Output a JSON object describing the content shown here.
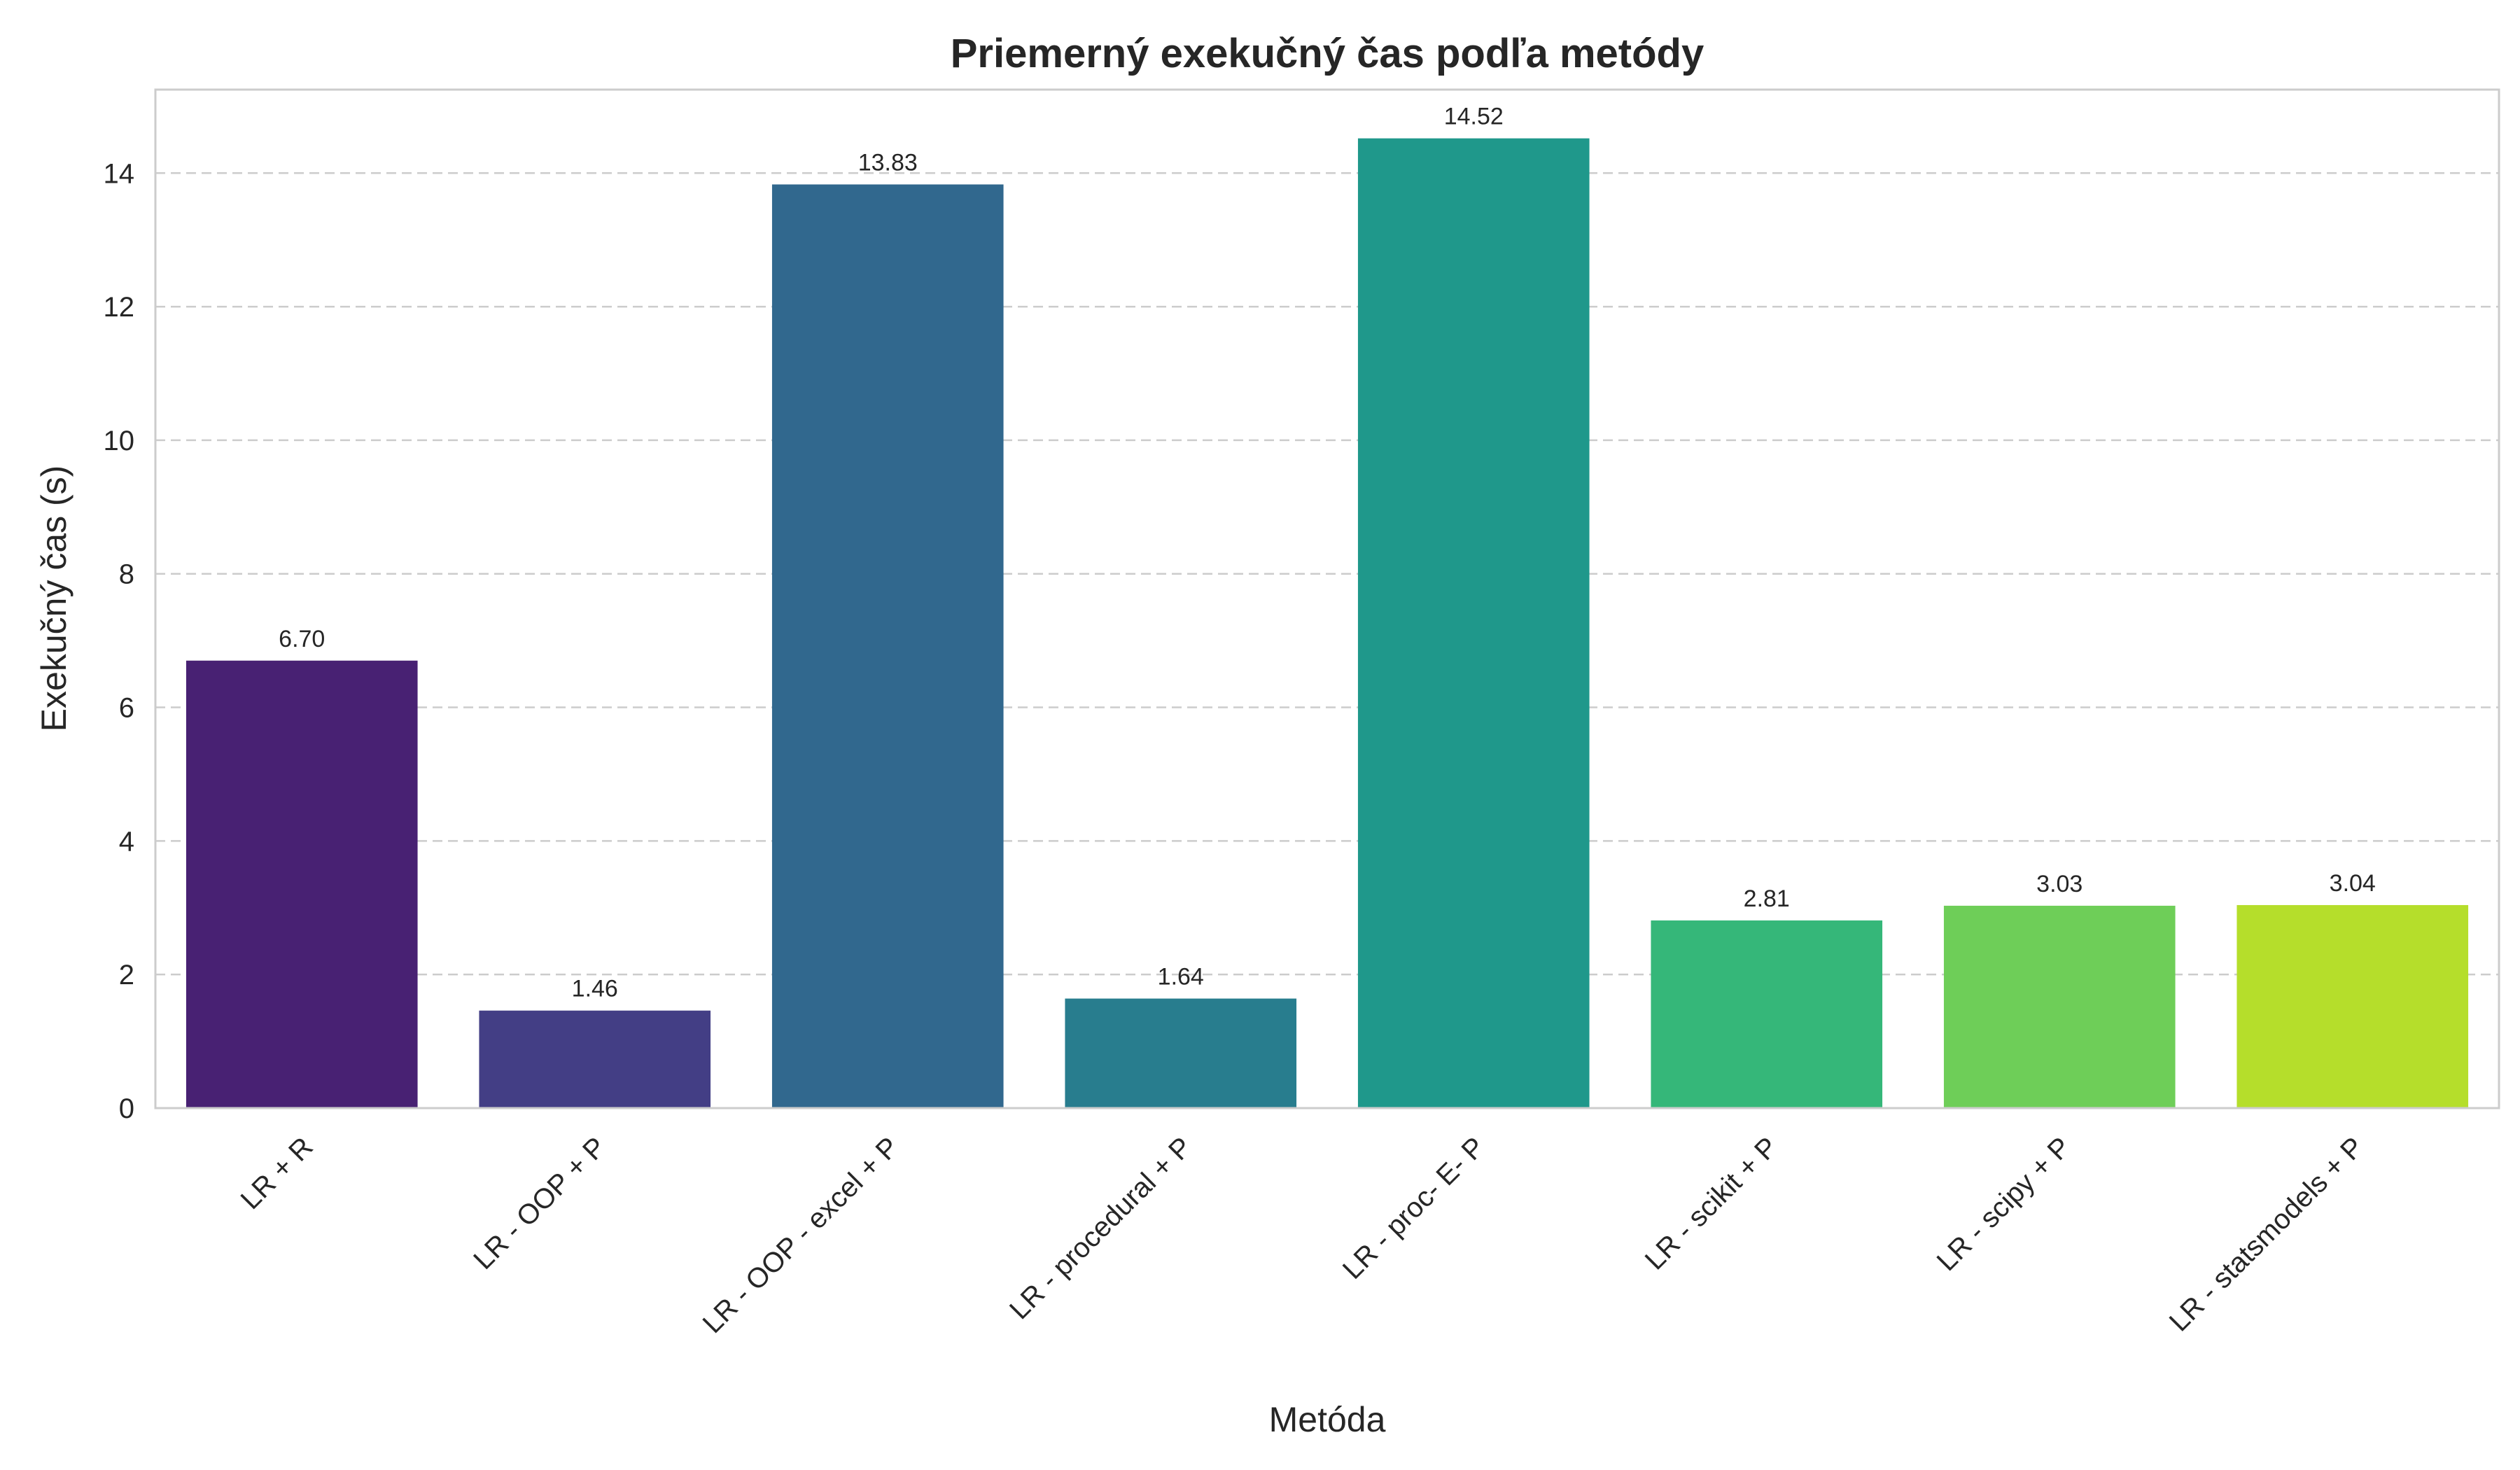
{
  "chart_data": {
    "type": "bar",
    "title": "Priemerný exekučný čas podľa metódy",
    "xlabel": "Metóda",
    "ylabel": "Exekučný čas (s)",
    "categories": [
      "LR + R",
      "LR - OOP + P",
      "LR - OOP - excel + P",
      "LR - procedural + P",
      "LR - proc- E- P",
      "LR - scikit + P",
      "LR - scipy + P",
      "LR - statsmodels + P"
    ],
    "values": [
      6.7,
      1.46,
      13.83,
      1.64,
      14.52,
      2.81,
      3.03,
      3.04
    ],
    "data_labels": [
      "6.70",
      "1.46",
      "13.83",
      "1.64",
      "14.52",
      "2.81",
      "3.03",
      "3.04"
    ],
    "colors": [
      "#482173",
      "#433e85",
      "#31688e",
      "#287d8e",
      "#1f988b",
      "#35b779",
      "#6ece58",
      "#b5de2b"
    ],
    "ylim": [
      0,
      15.25
    ],
    "yticks": [
      0,
      2,
      4,
      6,
      8,
      10,
      12,
      14
    ],
    "grid": "y-dashed",
    "legend": "none"
  }
}
